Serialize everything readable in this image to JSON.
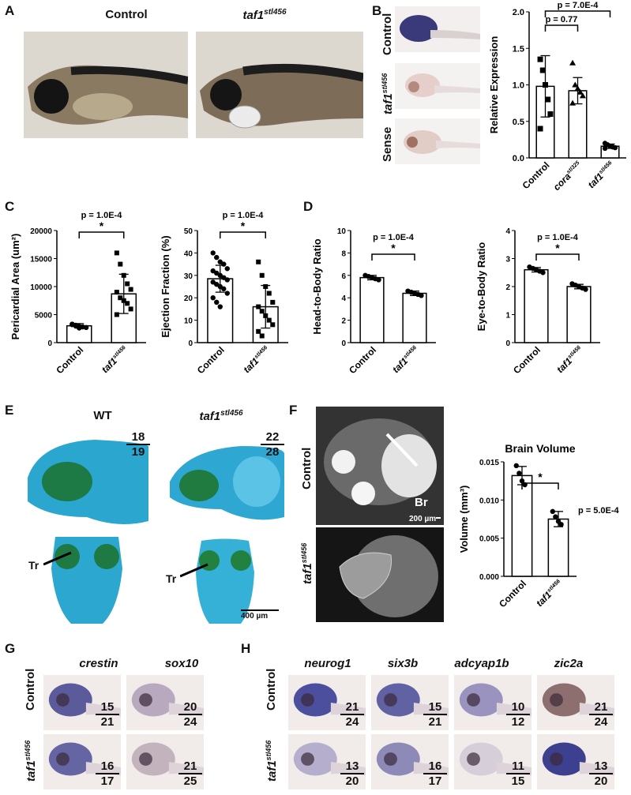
{
  "panels": {
    "A": {
      "letter": "A",
      "label_control": "Control",
      "label_mutant": "taf1",
      "mutant_sup": "stl456"
    },
    "B": {
      "letter": "B",
      "row_labels": [
        "Control",
        "taf1",
        "Sense"
      ],
      "row_sup": "stl456"
    },
    "C": {
      "letter": "C"
    },
    "D": {
      "letter": "D"
    },
    "E": {
      "letter": "E",
      "label_wt": "WT",
      "label_mutant": "taf1",
      "mutant_sup": "stl456",
      "frac_wt": {
        "num": "18",
        "den": "19"
      },
      "frac_mut": {
        "num": "22",
        "den": "28"
      },
      "tr_label": "Tr",
      "scale_label": "400 µm"
    },
    "F": {
      "letter": "F",
      "row_control": "Control",
      "row_mutant": "taf1",
      "mutant_sup": "stl456",
      "br_label": "Br",
      "scale_label": "200 µm"
    },
    "G": {
      "letter": "G",
      "genes": [
        "crestin",
        "sox10"
      ],
      "fracs": [
        {
          "num": "15",
          "den": "21"
        },
        {
          "num": "20",
          "den": "24"
        },
        {
          "num": "16",
          "den": "17"
        },
        {
          "num": "21",
          "den": "25"
        }
      ],
      "row_control": "Control",
      "row_mutant": "taf1",
      "mutant_sup": "stl456"
    },
    "H": {
      "letter": "H",
      "genes": [
        "neurog1",
        "six3b",
        "adcyap1b",
        "zic2a"
      ],
      "fracs": [
        {
          "num": "21",
          "den": "24"
        },
        {
          "num": "15",
          "den": "21"
        },
        {
          "num": "10",
          "den": "12"
        },
        {
          "num": "21",
          "den": "24"
        },
        {
          "num": "13",
          "den": "20"
        },
        {
          "num": "16",
          "den": "17"
        },
        {
          "num": "11",
          "den": "15"
        },
        {
          "num": "13",
          "den": "20"
        }
      ],
      "row_control": "Control",
      "row_mutant": "taf1",
      "mutant_sup": "stl456"
    }
  },
  "chart_data": [
    {
      "id": "B",
      "type": "bar",
      "title": "",
      "ylabel": "Relative Expression",
      "ylim": [
        0,
        2.0
      ],
      "yticks": [
        "0.0",
        "0.5",
        "1.0",
        "1.5",
        "2.0"
      ],
      "categories": [
        "Control",
        "cora",
        "taf1"
      ],
      "category_sups": [
        "",
        "stl325",
        "stl456"
      ],
      "values": [
        0.98,
        0.92,
        0.16
      ],
      "errors": [
        0.42,
        0.18,
        0.03
      ],
      "points": [
        [
          1.35,
          1.2,
          1.0,
          0.8,
          0.6,
          0.4
        ],
        [
          1.3,
          1.0,
          0.95,
          0.9,
          0.85,
          0.75
        ],
        [
          0.2,
          0.18,
          0.16,
          0.15,
          0.14,
          0.13
        ]
      ],
      "annotations": [
        "p = 0.77",
        "p = 7.0E-4"
      ]
    },
    {
      "id": "C1",
      "type": "bar",
      "title": "",
      "ylabel": "Pericardial Area (um²)",
      "ylim": [
        0,
        20000
      ],
      "yticks": [
        "0",
        "5000",
        "10000",
        "15000",
        "20000"
      ],
      "categories": [
        "Control",
        "taf1"
      ],
      "category_sups": [
        "",
        "stl456"
      ],
      "values": [
        3000,
        8700
      ],
      "errors": [
        400,
        3500
      ],
      "points": [
        [
          3300,
          3100,
          2900,
          2800,
          2700,
          3200,
          3000,
          2600
        ],
        [
          16000,
          14000,
          12000,
          10500,
          9500,
          9000,
          8000,
          7500,
          7000,
          6000,
          5000
        ]
      ],
      "annotations": [
        "p = 1.0E-4",
        "*"
      ]
    },
    {
      "id": "C2",
      "type": "bar",
      "title": "",
      "ylabel": "Ejection Fraction (%)",
      "ylim": [
        0,
        50
      ],
      "yticks": [
        "0",
        "10",
        "20",
        "30",
        "40",
        "50"
      ],
      "categories": [
        "Control",
        "taf1"
      ],
      "category_sups": [
        "",
        "stl456"
      ],
      "values": [
        28.5,
        16
      ],
      "errors": [
        6,
        9.5
      ],
      "points": [
        [
          40,
          38,
          36,
          35,
          33,
          32,
          31,
          30,
          29,
          28,
          27,
          26,
          25,
          24,
          22,
          20,
          18,
          16
        ],
        [
          36,
          30,
          25,
          22,
          18,
          16,
          14,
          12,
          10,
          8,
          5,
          3
        ]
      ],
      "annotations": [
        "p = 1.0E-4",
        "*"
      ]
    },
    {
      "id": "D1",
      "type": "bar",
      "title": "",
      "ylabel": "Head-to-Body Ratio",
      "ylim": [
        0,
        10
      ],
      "yticks": [
        "0",
        "2",
        "4",
        "6",
        "8",
        "10"
      ],
      "categories": [
        "Control",
        "taf1"
      ],
      "category_sups": [
        "",
        "stl456"
      ],
      "values": [
        5.8,
        4.4
      ],
      "errors": [
        0.2,
        0.2
      ],
      "points": [
        [
          6.0,
          5.9,
          5.8,
          5.7,
          5.6
        ],
        [
          4.6,
          4.5,
          4.4,
          4.3,
          4.2
        ]
      ],
      "annotations": [
        "p = 1.0E-4",
        "*"
      ]
    },
    {
      "id": "D2",
      "type": "bar",
      "title": "",
      "ylabel": "Eye-to-Body Ratio",
      "ylim": [
        0,
        4
      ],
      "yticks": [
        "0",
        "1",
        "2",
        "3",
        "4"
      ],
      "categories": [
        "Control",
        "taf1"
      ],
      "category_sups": [
        "",
        "stl456"
      ],
      "values": [
        2.6,
        2.0
      ],
      "errors": [
        0.08,
        0.08
      ],
      "points": [
        [
          2.7,
          2.65,
          2.6,
          2.55,
          2.5
        ],
        [
          2.1,
          2.05,
          2.0,
          1.95,
          1.9
        ]
      ],
      "annotations": [
        "p = 1.0E-4",
        "*"
      ]
    },
    {
      "id": "F",
      "type": "bar",
      "title": "Brain Volume",
      "ylabel": "Volume (mm³)",
      "ylim": [
        0,
        0.015
      ],
      "yticks": [
        "0.000",
        "0.005",
        "0.010",
        "0.015"
      ],
      "categories": [
        "Control",
        "taf1"
      ],
      "category_sups": [
        "",
        "stl456"
      ],
      "values": [
        0.0132,
        0.0075
      ],
      "errors": [
        0.0012,
        0.001
      ],
      "points": [
        [
          0.0145,
          0.0135,
          0.0125,
          0.012
        ],
        [
          0.0085,
          0.0078,
          0.0072,
          0.0068
        ]
      ],
      "annotations": [
        "p = 5.0E-4",
        "*"
      ]
    }
  ]
}
